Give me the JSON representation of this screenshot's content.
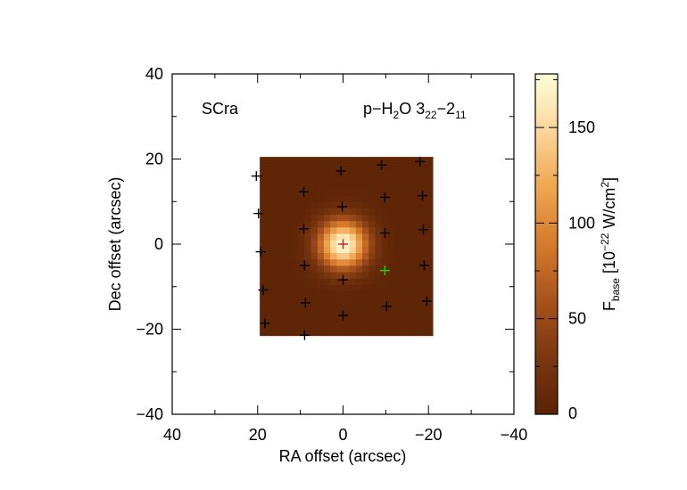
{
  "chart_data": {
    "type": "heatmap",
    "xlabel": "RA offset (arcsec)",
    "ylabel": "Dec offset (arcsec)",
    "xlim": [
      40,
      -40
    ],
    "ylim": [
      -40,
      40
    ],
    "xticks": [
      "40",
      "20",
      "0",
      "−20",
      "−40"
    ],
    "yticks": [
      "40",
      "20",
      "0",
      "−20",
      "−40"
    ],
    "annotations": {
      "source": "SCra",
      "line": {
        "base": "p−H",
        "sub1": "2",
        "mid": "O 3",
        "sub2": "22",
        "dash": "−2",
        "sub3": "11"
      }
    },
    "colorbar": {
      "label": {
        "a": "F",
        "a_sub": "base",
        "b": " [10",
        "b_sup": "−22",
        "c": " W/cm",
        "c_sup": "2",
        "d": "]"
      },
      "range": [
        0,
        178
      ],
      "ticks": [
        "0",
        "50",
        "100",
        "150"
      ],
      "tick_values": [
        0,
        50,
        100,
        150
      ],
      "colormap": "copper-hot",
      "colors": [
        "#5b2306",
        "#7a3710",
        "#a8521d",
        "#d57a2c",
        "#f0a650",
        "#fbd69a",
        "#ffffd8"
      ]
    },
    "map": {
      "ra_range": [
        19.5,
        -19.5
      ],
      "dec_range": [
        -21.5,
        19.5
      ],
      "background_flux": 3,
      "peak_flux": 178,
      "peak_center": [
        0,
        0
      ],
      "fwhm_arcsec": 9.5
    },
    "spaxels": [
      {
        "ra": 20.3,
        "dec": 16.0
      },
      {
        "ra": 19.8,
        "dec": 7.2
      },
      {
        "ra": 19.3,
        "dec": -1.8
      },
      {
        "ra": 18.7,
        "dec": -10.8
      },
      {
        "ra": 18.3,
        "dec": -18.6
      },
      {
        "ra": 9.2,
        "dec": 12.3
      },
      {
        "ra": 9.2,
        "dec": 3.6
      },
      {
        "ra": 9.0,
        "dec": -5.0
      },
      {
        "ra": 8.8,
        "dec": -13.8
      },
      {
        "ra": 9.0,
        "dec": -21.4
      },
      {
        "ra": 0.5,
        "dec": 17.2
      },
      {
        "ra": 0.2,
        "dec": 8.8
      },
      {
        "ra": 0.0,
        "dec": -8.4
      },
      {
        "ra": 0.0,
        "dec": -16.8
      },
      {
        "ra": -9.0,
        "dec": 18.6
      },
      {
        "ra": -9.8,
        "dec": 11.0
      },
      {
        "ra": -9.8,
        "dec": 2.6
      },
      {
        "ra": -10.2,
        "dec": -14.6
      },
      {
        "ra": -18.0,
        "dec": 19.4
      },
      {
        "ra": -18.6,
        "dec": 11.4
      },
      {
        "ra": -18.8,
        "dec": 3.4
      },
      {
        "ra": -19.0,
        "dec": -5.0
      },
      {
        "ra": -19.6,
        "dec": -13.4
      }
    ],
    "central_spaxel": {
      "ra": 0.0,
      "dec": 0.0,
      "color": "#e01010"
    },
    "reference_position": {
      "ra": -9.8,
      "dec": -6.2,
      "color": "#22d122"
    }
  }
}
